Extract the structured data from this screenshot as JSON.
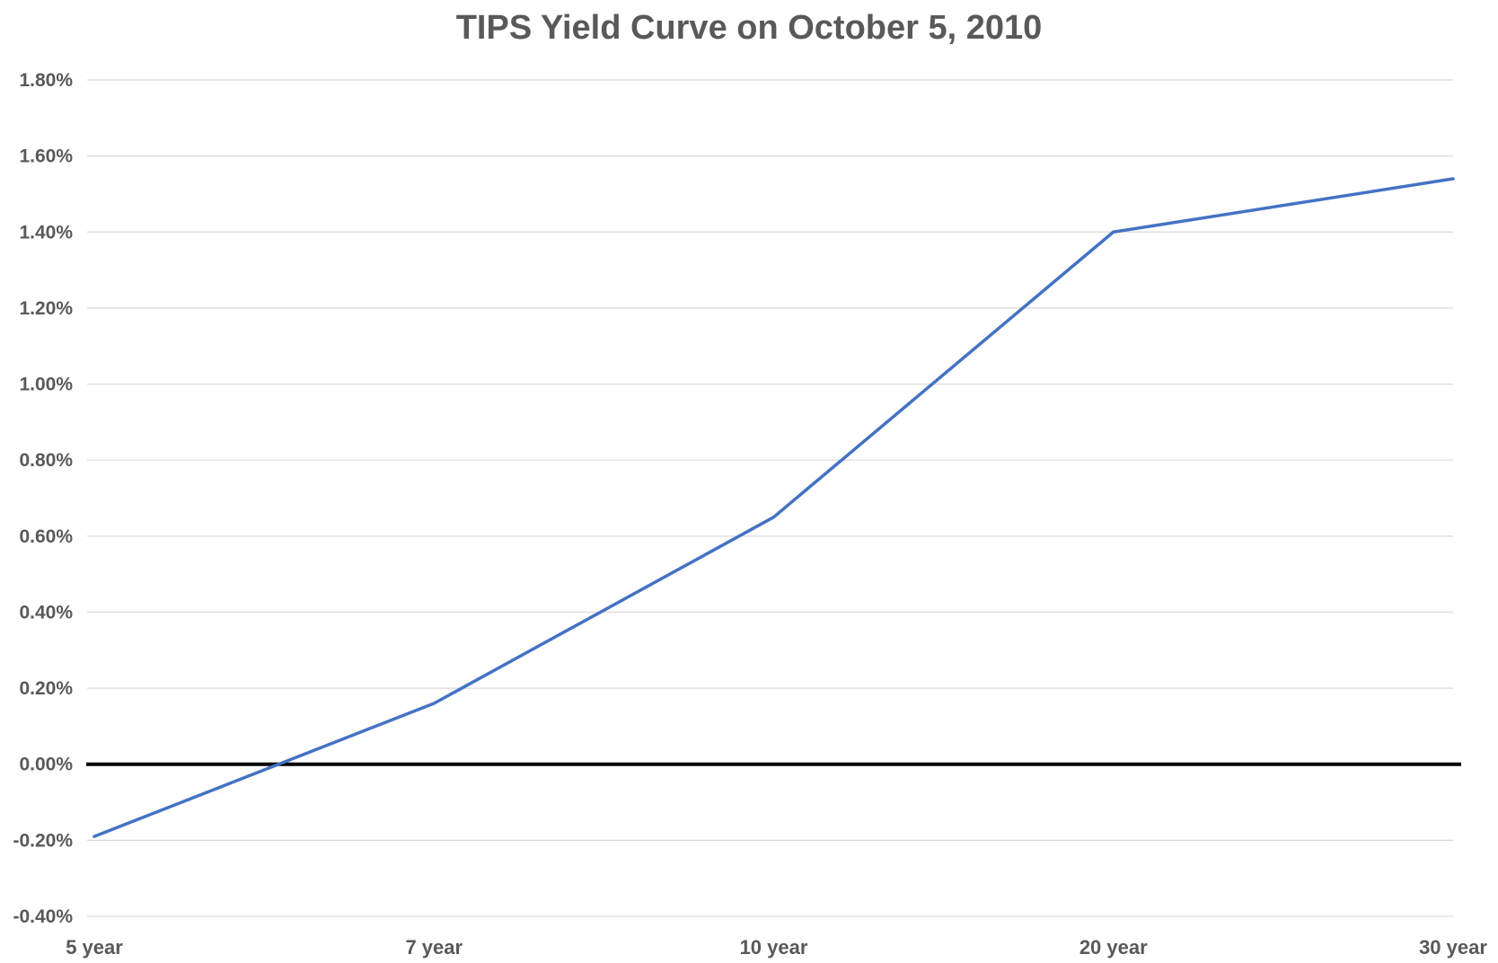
{
  "chart_data": {
    "type": "line",
    "title": "TIPS Yield Curve on October 5, 2010",
    "categories": [
      "5 year",
      "7 year",
      "10 year",
      "20 year",
      "30 year"
    ],
    "series": [
      {
        "values": [
          -0.19,
          0.16,
          0.65,
          1.4,
          1.54
        ],
        "color": "#4472C4"
      }
    ],
    "yticks": [
      "-0.40%",
      "-0.20%",
      "0.00%",
      "0.20%",
      "0.40%",
      "0.60%",
      "0.80%",
      "1.00%",
      "1.20%",
      "1.40%",
      "1.60%",
      "1.80%"
    ],
    "ytick_values": [
      -0.4,
      -0.2,
      0.0,
      0.2,
      0.4,
      0.6,
      0.8,
      1.0,
      1.2,
      1.4,
      1.6,
      1.8
    ],
    "ylim": [
      -0.4,
      1.8
    ],
    "grid": true,
    "zero_line_color": "#000000",
    "grid_color": "#D9D9D9"
  }
}
